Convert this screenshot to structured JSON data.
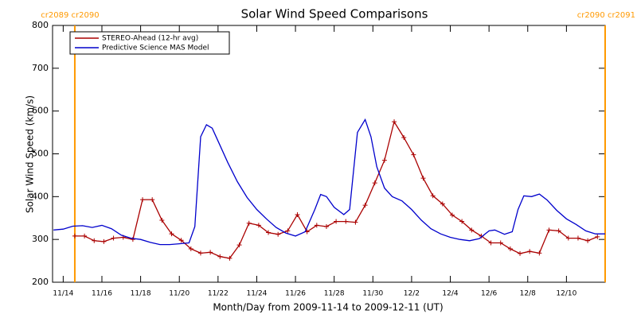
{
  "chart_data": {
    "type": "line",
    "title": "Solar Wind Speed Comparisons",
    "xlabel": "Month/Day from 2009-11-14 to 2009-12-11 (UT)",
    "ylabel": "Solar Wind Speed (km/s)",
    "xlim": [
      -0.55,
      28
    ],
    "xticks": [
      {
        "value": 0,
        "label": "11/14"
      },
      {
        "value": 2,
        "label": "11/16"
      },
      {
        "value": 4,
        "label": "11/18"
      },
      {
        "value": 6,
        "label": "11/20"
      },
      {
        "value": 8,
        "label": "11/22"
      },
      {
        "value": 10,
        "label": "11/24"
      },
      {
        "value": 12,
        "label": "11/26"
      },
      {
        "value": 14,
        "label": "11/28"
      },
      {
        "value": 16,
        "label": "11/30"
      },
      {
        "value": 18,
        "label": "12/2"
      },
      {
        "value": 20,
        "label": "12/4"
      },
      {
        "value": 22,
        "label": "12/6"
      },
      {
        "value": 24,
        "label": "12/8"
      },
      {
        "value": 26,
        "label": "12/10"
      }
    ],
    "ylim": [
      200,
      800
    ],
    "yticks": [
      200,
      300,
      400,
      500,
      600,
      700,
      800
    ],
    "legend": "upper left",
    "annotations": [
      {
        "text": "cr2089 cr2090",
        "x": 0.6,
        "color": "#ff9900"
      },
      {
        "text": "cr2090 cr2091",
        "x": 28,
        "color": "#ff9900"
      }
    ],
    "series": [
      {
        "name": "STEREO-Ahead (12-hr avg)",
        "color": "#aa0000",
        "marker": "+",
        "x": [
          0.6,
          1.1,
          1.6,
          2.1,
          2.6,
          3.1,
          3.6,
          4.1,
          4.6,
          5.1,
          5.6,
          6.1,
          6.6,
          7.1,
          7.6,
          8.1,
          8.6,
          9.1,
          9.6,
          10.1,
          10.6,
          11.1,
          11.6,
          12.1,
          12.6,
          13.1,
          13.6,
          14.1,
          14.6,
          15.1,
          15.6,
          16.1,
          16.6,
          17.1,
          17.6,
          18.1,
          18.6,
          19.1,
          19.6,
          20.1,
          20.6,
          21.1,
          21.6,
          22.1,
          22.6,
          23.1,
          23.6,
          24.1,
          24.6,
          25.1,
          25.6,
          26.1,
          26.6,
          27.1,
          27.6
        ],
        "values": [
          308,
          308,
          297,
          295,
          303,
          305,
          300,
          393,
          393,
          345,
          313,
          298,
          278,
          268,
          270,
          260,
          256,
          287,
          338,
          333,
          316,
          312,
          320,
          358,
          318,
          333,
          330,
          342,
          342,
          340,
          380,
          432,
          485,
          575,
          538,
          498,
          443,
          402,
          383,
          357,
          342,
          322,
          308,
          292,
          292,
          278,
          267,
          272,
          268,
          322,
          320,
          303,
          303,
          297,
          306
        ]
      },
      {
        "name": "Predictive Science MAS Model",
        "color": "#0000cc",
        "x": [
          -0.5,
          0,
          0.5,
          1,
          1.5,
          2,
          2.5,
          3,
          3.5,
          4,
          4.5,
          5,
          5.5,
          6,
          6.5,
          6.8,
          7.1,
          7.4,
          7.7,
          8,
          8.5,
          9,
          9.5,
          10,
          10.5,
          11,
          11.5,
          12,
          12.5,
          13,
          13.3,
          13.6,
          14,
          14.5,
          14.8,
          15.2,
          15.6,
          15.9,
          16.2,
          16.6,
          17,
          17.5,
          18,
          18.5,
          19,
          19.5,
          20,
          20.5,
          21,
          21.5,
          22,
          22.3,
          22.8,
          23.2,
          23.5,
          23.8,
          24.2,
          24.6,
          25,
          25.5,
          26,
          26.5,
          27,
          27.5,
          28
        ],
        "values": [
          322,
          324,
          331,
          332,
          328,
          333,
          325,
          310,
          303,
          300,
          293,
          288,
          288,
          290,
          292,
          330,
          540,
          568,
          560,
          530,
          480,
          435,
          398,
          370,
          348,
          328,
          315,
          308,
          318,
          370,
          405,
          400,
          375,
          358,
          370,
          550,
          580,
          540,
          470,
          420,
          400,
          390,
          370,
          345,
          325,
          313,
          305,
          300,
          297,
          302,
          320,
          322,
          312,
          318,
          370,
          402,
          400,
          406,
          392,
          368,
          348,
          335,
          320,
          313,
          313
        ]
      }
    ]
  }
}
